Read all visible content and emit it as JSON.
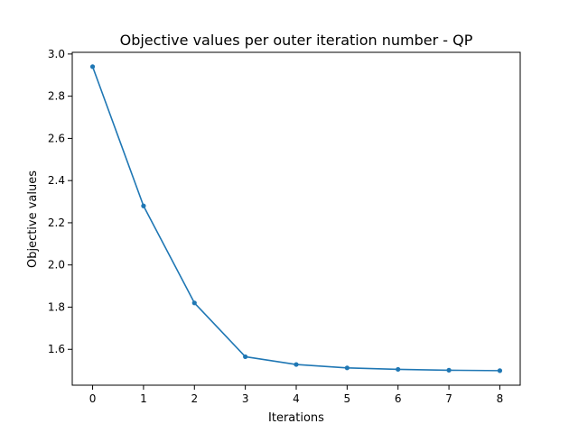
{
  "chart_data": {
    "type": "line",
    "title": "Objective values per outer iteration number - QP",
    "xlabel": "Iterations",
    "ylabel": "Objective values",
    "x": [
      0,
      1,
      2,
      3,
      4,
      5,
      6,
      7,
      8
    ],
    "series": [
      {
        "values": [
          2.94,
          2.28,
          1.82,
          1.565,
          1.528,
          1.512,
          1.505,
          1.501,
          1.499
        ],
        "color": "#1f77b4",
        "marker": "dot"
      }
    ],
    "xlim": [
      -0.4,
      8.4
    ],
    "ylim": [
      1.43,
      3.008
    ],
    "xticks": [
      "0",
      "1",
      "2",
      "3",
      "4",
      "5",
      "6",
      "7",
      "8"
    ],
    "yticks": [
      "1.6",
      "1.8",
      "2.0",
      "2.2",
      "2.4",
      "2.6",
      "2.8",
      "3.0"
    ],
    "grid": false,
    "legend": false
  }
}
